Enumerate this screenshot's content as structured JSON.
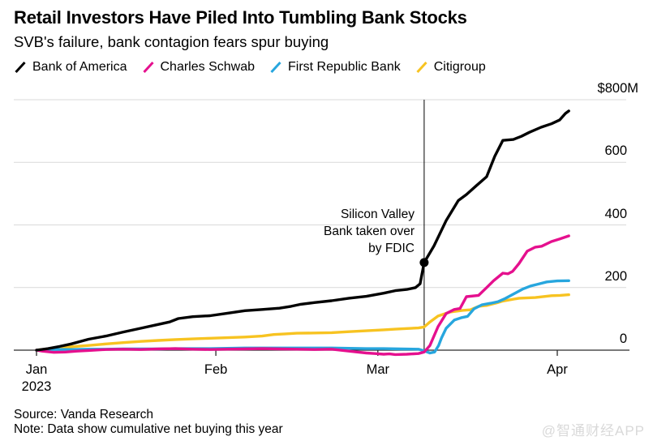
{
  "header": {
    "title": "Retail Investors Have Piled Into Tumbling Bank Stocks",
    "subtitle": "SVB's failure, bank contagion fears spur buying"
  },
  "legend": {
    "items": [
      {
        "id": "bofa",
        "label": "Bank of America",
        "color": "#000000"
      },
      {
        "id": "schwab",
        "label": "Charles Schwab",
        "color": "#e5108e"
      },
      {
        "id": "frb",
        "label": "First Republic Bank",
        "color": "#27a6de"
      },
      {
        "id": "citi",
        "label": "Citigroup",
        "color": "#f7c321"
      }
    ]
  },
  "annotation": {
    "lines": [
      "Silicon Valley",
      "Bank taken over",
      "by FDIC"
    ]
  },
  "footer": {
    "source": "Source: Vanda Research",
    "note": "Note: Data show cumulative net buying this year"
  },
  "watermark": "@智通财经APP",
  "chart_data": {
    "type": "line",
    "title": "Retail Investors Have Piled Into Tumbling Bank Stocks",
    "subtitle": "SVB's failure, bank contagion fears spur buying",
    "unit": "$M (cumulative net buying, 2023)",
    "xlabel": "",
    "ylabel": "$M",
    "grid": "horizontal",
    "legend_position": "top",
    "colors": {
      "grid": "#d9d9d9",
      "axis": "#2b2b2b",
      "annotation_line": "#000000"
    },
    "x_axis": {
      "unit": "days since Jan 1, 2023",
      "range": [
        0,
        92
      ],
      "ticks": [
        {
          "day": 0,
          "label": "Jan",
          "sublabel": "2023"
        },
        {
          "day": 31,
          "label": "Feb",
          "sublabel": ""
        },
        {
          "day": 59,
          "label": "Mar",
          "sublabel": ""
        },
        {
          "day": 90,
          "label": "Apr",
          "sublabel": ""
        }
      ]
    },
    "y_axis": {
      "range": [
        -20,
        800
      ],
      "tick_values": [
        0,
        200,
        400,
        600,
        800
      ],
      "tick_labels": [
        "0",
        "200",
        "400",
        "600",
        "$800M"
      ],
      "gridline_values": [
        200,
        400,
        600,
        800
      ]
    },
    "annotation_line": {
      "day": 67,
      "date": "2023-03-10",
      "label": "Silicon Valley Bank taken over by FDIC",
      "dot": {
        "series": "Bank of America",
        "day": 67,
        "value": 280
      }
    },
    "series": [
      {
        "name": "Citigroup",
        "color": "#f7c321",
        "points": [
          [
            0,
            0
          ],
          [
            3,
            6
          ],
          [
            6,
            11
          ],
          [
            9,
            15
          ],
          [
            12,
            20
          ],
          [
            15,
            24
          ],
          [
            18,
            28
          ],
          [
            21,
            31
          ],
          [
            24,
            34
          ],
          [
            27,
            36
          ],
          [
            30,
            38
          ],
          [
            33,
            40
          ],
          [
            36,
            42
          ],
          [
            39,
            45
          ],
          [
            41,
            50
          ],
          [
            43,
            52
          ],
          [
            45,
            54
          ],
          [
            48,
            55
          ],
          [
            51,
            56
          ],
          [
            54,
            59
          ],
          [
            57,
            62
          ],
          [
            60,
            65
          ],
          [
            62,
            67
          ],
          [
            64,
            69
          ],
          [
            66,
            71
          ],
          [
            67,
            74
          ],
          [
            68,
            90
          ],
          [
            69.4,
            109
          ],
          [
            71.5,
            122
          ],
          [
            73.6,
            127
          ],
          [
            75,
            129
          ],
          [
            76.4,
            140
          ],
          [
            77.8,
            143
          ],
          [
            79.5,
            151
          ],
          [
            80.6,
            157
          ],
          [
            83.4,
            166
          ],
          [
            86.2,
            168
          ],
          [
            89,
            174
          ],
          [
            90.5,
            175
          ],
          [
            92,
            177
          ]
        ]
      },
      {
        "name": "First Republic Bank",
        "color": "#27a6de",
        "points": [
          [
            0,
            0
          ],
          [
            3,
            2
          ],
          [
            6,
            2
          ],
          [
            9,
            3
          ],
          [
            12,
            3
          ],
          [
            15,
            4
          ],
          [
            18,
            4
          ],
          [
            21,
            4
          ],
          [
            24,
            5
          ],
          [
            27,
            5
          ],
          [
            30,
            5
          ],
          [
            33,
            6
          ],
          [
            36,
            7
          ],
          [
            39,
            7
          ],
          [
            42,
            7
          ],
          [
            45,
            7
          ],
          [
            48,
            7
          ],
          [
            51,
            7
          ],
          [
            54,
            6
          ],
          [
            57,
            5
          ],
          [
            60,
            5
          ],
          [
            63,
            4
          ],
          [
            66,
            3
          ],
          [
            67,
            -2
          ],
          [
            68,
            -9
          ],
          [
            68.8,
            -6
          ],
          [
            69.5,
            15
          ],
          [
            70,
            39
          ],
          [
            70.8,
            70
          ],
          [
            72.2,
            96
          ],
          [
            73.5,
            104
          ],
          [
            74.5,
            108
          ],
          [
            75.6,
            132
          ],
          [
            77,
            145
          ],
          [
            78.5,
            150
          ],
          [
            79.8,
            155
          ],
          [
            81,
            165
          ],
          [
            82.6,
            181
          ],
          [
            84,
            195
          ],
          [
            85.4,
            205
          ],
          [
            86.5,
            210
          ],
          [
            88.2,
            218
          ],
          [
            90,
            221
          ],
          [
            92,
            222
          ]
        ]
      },
      {
        "name": "Charles Schwab",
        "color": "#e5108e",
        "points": [
          [
            0,
            0
          ],
          [
            1,
            -3
          ],
          [
            3,
            -7
          ],
          [
            5,
            -6
          ],
          [
            7,
            -3
          ],
          [
            9,
            -1
          ],
          [
            12,
            2
          ],
          [
            15,
            3
          ],
          [
            18,
            2
          ],
          [
            21,
            4
          ],
          [
            24,
            5
          ],
          [
            27,
            3
          ],
          [
            30,
            2
          ],
          [
            33,
            3
          ],
          [
            36,
            4
          ],
          [
            39,
            5
          ],
          [
            42,
            4
          ],
          [
            45,
            3
          ],
          [
            48,
            2
          ],
          [
            51,
            3
          ],
          [
            54,
            -3
          ],
          [
            57,
            -9
          ],
          [
            58.5,
            -11
          ],
          [
            60,
            -13
          ],
          [
            61,
            -12
          ],
          [
            62,
            -14
          ],
          [
            64,
            -13
          ],
          [
            66,
            -11
          ],
          [
            67,
            -6
          ],
          [
            68,
            15
          ],
          [
            69.4,
            75
          ],
          [
            70.8,
            117
          ],
          [
            72.2,
            130
          ],
          [
            73.2,
            133
          ],
          [
            74.3,
            171
          ],
          [
            76.4,
            175
          ],
          [
            77.8,
            200
          ],
          [
            79,
            222
          ],
          [
            80.6,
            246
          ],
          [
            81.5,
            244
          ],
          [
            82.3,
            252
          ],
          [
            83.4,
            277
          ],
          [
            84.8,
            316
          ],
          [
            86.2,
            329
          ],
          [
            87.3,
            332
          ],
          [
            89,
            347
          ],
          [
            90.4,
            355
          ],
          [
            92,
            365
          ]
        ]
      },
      {
        "name": "Bank of America",
        "color": "#000000",
        "points": [
          [
            0,
            0
          ],
          [
            2,
            5
          ],
          [
            4,
            12
          ],
          [
            6,
            20
          ],
          [
            9,
            35
          ],
          [
            12,
            45
          ],
          [
            15,
            58
          ],
          [
            18,
            70
          ],
          [
            21,
            82
          ],
          [
            23,
            90
          ],
          [
            24.5,
            101
          ],
          [
            27,
            107
          ],
          [
            30,
            110
          ],
          [
            33,
            118
          ],
          [
            36,
            126
          ],
          [
            39,
            130
          ],
          [
            42,
            134
          ],
          [
            44,
            140
          ],
          [
            45.5,
            146
          ],
          [
            48,
            152
          ],
          [
            51,
            158
          ],
          [
            54,
            166
          ],
          [
            57,
            172
          ],
          [
            60,
            182
          ],
          [
            62,
            190
          ],
          [
            64,
            194
          ],
          [
            65.5,
            200
          ],
          [
            66.3,
            212
          ],
          [
            67,
            280
          ],
          [
            68.7,
            333
          ],
          [
            70.8,
            414
          ],
          [
            72.9,
            478
          ],
          [
            74.3,
            497
          ],
          [
            76,
            525
          ],
          [
            77.8,
            554
          ],
          [
            79.2,
            619
          ],
          [
            80.6,
            670
          ],
          [
            82.4,
            673
          ],
          [
            83.8,
            683
          ],
          [
            85.2,
            696
          ],
          [
            87.2,
            712
          ],
          [
            89,
            723
          ],
          [
            90.4,
            735
          ],
          [
            91.4,
            756
          ],
          [
            92,
            764
          ]
        ]
      }
    ]
  }
}
